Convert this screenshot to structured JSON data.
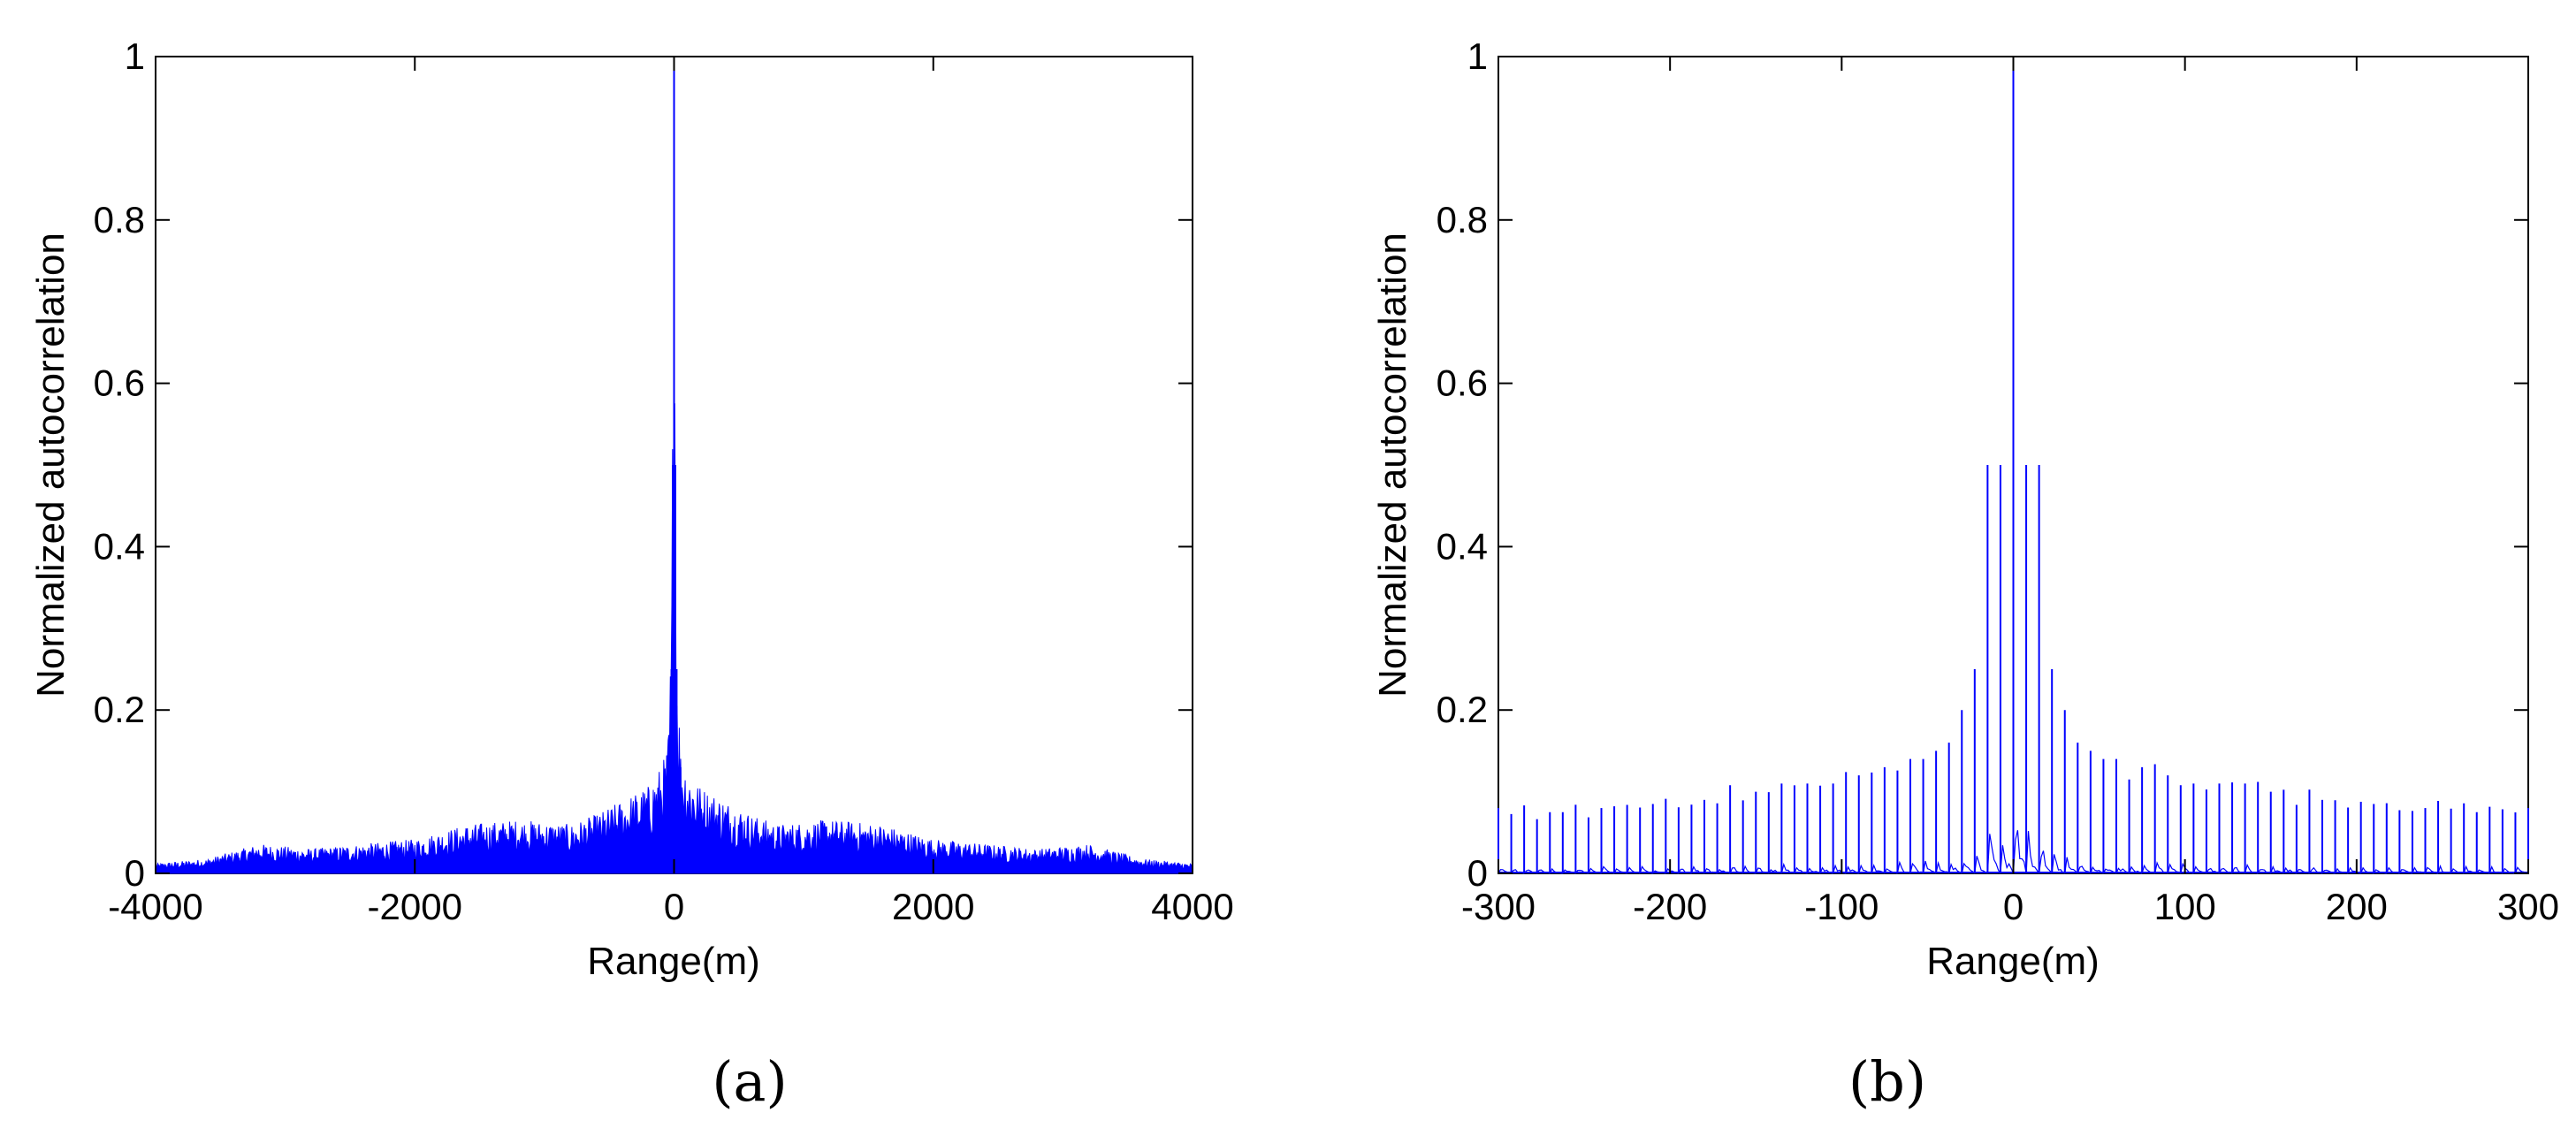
{
  "chart_data": [
    {
      "type": "line",
      "panel": "(a)",
      "xlabel": "Range(m)",
      "ylabel": "Normalized autocorrelation",
      "xlim": [
        -4000,
        4000
      ],
      "ylim": [
        0,
        1
      ],
      "xticks": [
        -4000,
        -2000,
        0,
        2000,
        4000
      ],
      "xtick_labels": [
        "-4000",
        "-2000",
        "0",
        "2000",
        "4000"
      ],
      "yticks": [
        0,
        0.2,
        0.4,
        0.6,
        0.8,
        1
      ],
      "ytick_labels": [
        "0",
        "0.2",
        "0.4",
        "0.6",
        "0.8",
        "1"
      ],
      "grid": false,
      "color": "#0000ff",
      "series": [
        {
          "description_points": {
            "x": [
              -4000,
              -3600,
              -3200,
              -2800,
              -2400,
              -2000,
              -1600,
              -1200,
              -800,
              -600,
              -400,
              -200,
              -100,
              -50,
              -20,
              -10,
              0,
              10,
              20,
              50,
              100,
              200,
              400,
              600,
              800,
              1200,
              1600,
              2000,
              2400,
              2800,
              3200,
              3600,
              4000
            ],
            "y": [
              0.01,
              0.015,
              0.03,
              0.025,
              0.03,
              0.035,
              0.05,
              0.055,
              0.05,
              0.06,
              0.075,
              0.09,
              0.11,
              0.13,
              0.25,
              0.5,
              1.0,
              0.5,
              0.25,
              0.13,
              0.11,
              0.09,
              0.075,
              0.06,
              0.05,
              0.055,
              0.05,
              0.035,
              0.03,
              0.025,
              0.03,
              0.015,
              0.01
            ]
          }
        }
      ]
    },
    {
      "type": "line",
      "panel": "(b)",
      "xlabel": "Range(m)",
      "ylabel": "Normalized autocorrelation",
      "xlim": [
        -300,
        300
      ],
      "ylim": [
        0,
        1
      ],
      "xticks": [
        -300,
        -200,
        -100,
        0,
        100,
        200,
        300
      ],
      "xtick_labels": [
        "-300",
        "-200",
        "-100",
        "0",
        "100",
        "200",
        "300"
      ],
      "yticks": [
        0,
        0.2,
        0.4,
        0.6,
        0.8,
        1
      ],
      "ytick_labels": [
        "0",
        "0.2",
        "0.4",
        "0.6",
        "0.8",
        "1"
      ],
      "grid": false,
      "color": "#0000ff",
      "series": [
        {
          "spike_spacing": 7.5,
          "spikes": {
            "x": [
              0,
              7.5,
              -7.5,
              15,
              -15,
              22.5,
              -22.5,
              30,
              -30,
              37.5,
              -37.5,
              45,
              -45,
              52.5,
              -52.5,
              60,
              -60,
              75,
              -75,
              90,
              -90,
              105,
              -105,
              120,
              -120,
              135,
              -135,
              150,
              -150,
              180,
              -180,
              210,
              -210,
              240,
              -240,
              270,
              -270,
              300,
              -300
            ],
            "y": [
              1.0,
              0.5,
              0.5,
              0.5,
              0.5,
              0.25,
              0.25,
              0.2,
              0.2,
              0.16,
              0.16,
              0.15,
              0.15,
              0.14,
              0.14,
              0.14,
              0.14,
              0.13,
              0.13,
              0.12,
              0.12,
              0.11,
              0.11,
              0.11,
              0.11,
              0.11,
              0.11,
              0.1,
              0.1,
              0.09,
              0.09,
              0.085,
              0.085,
              0.08,
              0.08,
              0.075,
              0.075,
              0.08,
              0.08
            ]
          }
        }
      ]
    }
  ]
}
